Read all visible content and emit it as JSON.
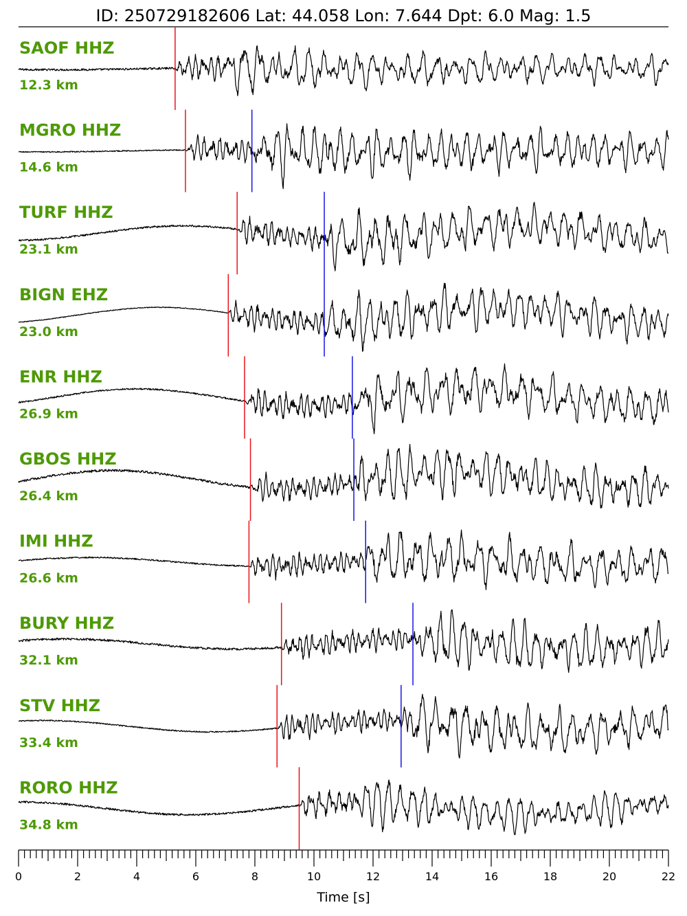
{
  "title": "ID: 250729182606 Lat:  44.058 Lon:   7.644 Dpt:     6.0 Mag:   1.5",
  "colors": {
    "label": "#4e9a06",
    "trace": "#000000",
    "p_pick": "#e8121b",
    "s_pick": "#1515e0"
  },
  "chart_data": {
    "type": "line",
    "title": "ID: 250729182606 Lat:  44.058 Lon:   7.644 Dpt:     6.0 Mag:   1.5",
    "xlabel": "Time [s]",
    "ylabel": "",
    "xlim": [
      0,
      22
    ],
    "xticks": [
      "0",
      "2",
      "4",
      "6",
      "8",
      "10",
      "12",
      "14",
      "16",
      "18",
      "20",
      "22"
    ],
    "grid": false,
    "traces": [
      {
        "station": "SAOF HHZ",
        "distance": "12.3 km",
        "p_pick": 5.3,
        "s_pick": null
      },
      {
        "station": "MGRO HHZ",
        "distance": "14.6 km",
        "p_pick": 5.65,
        "s_pick": 7.9
      },
      {
        "station": "TURF HHZ",
        "distance": "23.1 km",
        "p_pick": 7.4,
        "s_pick": 10.35
      },
      {
        "station": "BIGN EHZ",
        "distance": "23.0 km",
        "p_pick": 7.1,
        "s_pick": 10.35
      },
      {
        "station": "ENR HHZ",
        "distance": "26.9 km",
        "p_pick": 7.65,
        "s_pick": 11.3
      },
      {
        "station": "GBOS HHZ",
        "distance": "26.4 km",
        "p_pick": 7.85,
        "s_pick": 11.35
      },
      {
        "station": "IMI HHZ",
        "distance": "26.6 km",
        "p_pick": 7.8,
        "s_pick": 11.75
      },
      {
        "station": "BURY HHZ",
        "distance": "32.1 km",
        "p_pick": 8.9,
        "s_pick": 13.35
      },
      {
        "station": "STV HHZ",
        "distance": "33.4 km",
        "p_pick": 8.75,
        "s_pick": 12.95
      },
      {
        "station": "RORO HHZ",
        "distance": "34.8 km",
        "p_pick": 9.5,
        "s_pick": null
      }
    ]
  }
}
